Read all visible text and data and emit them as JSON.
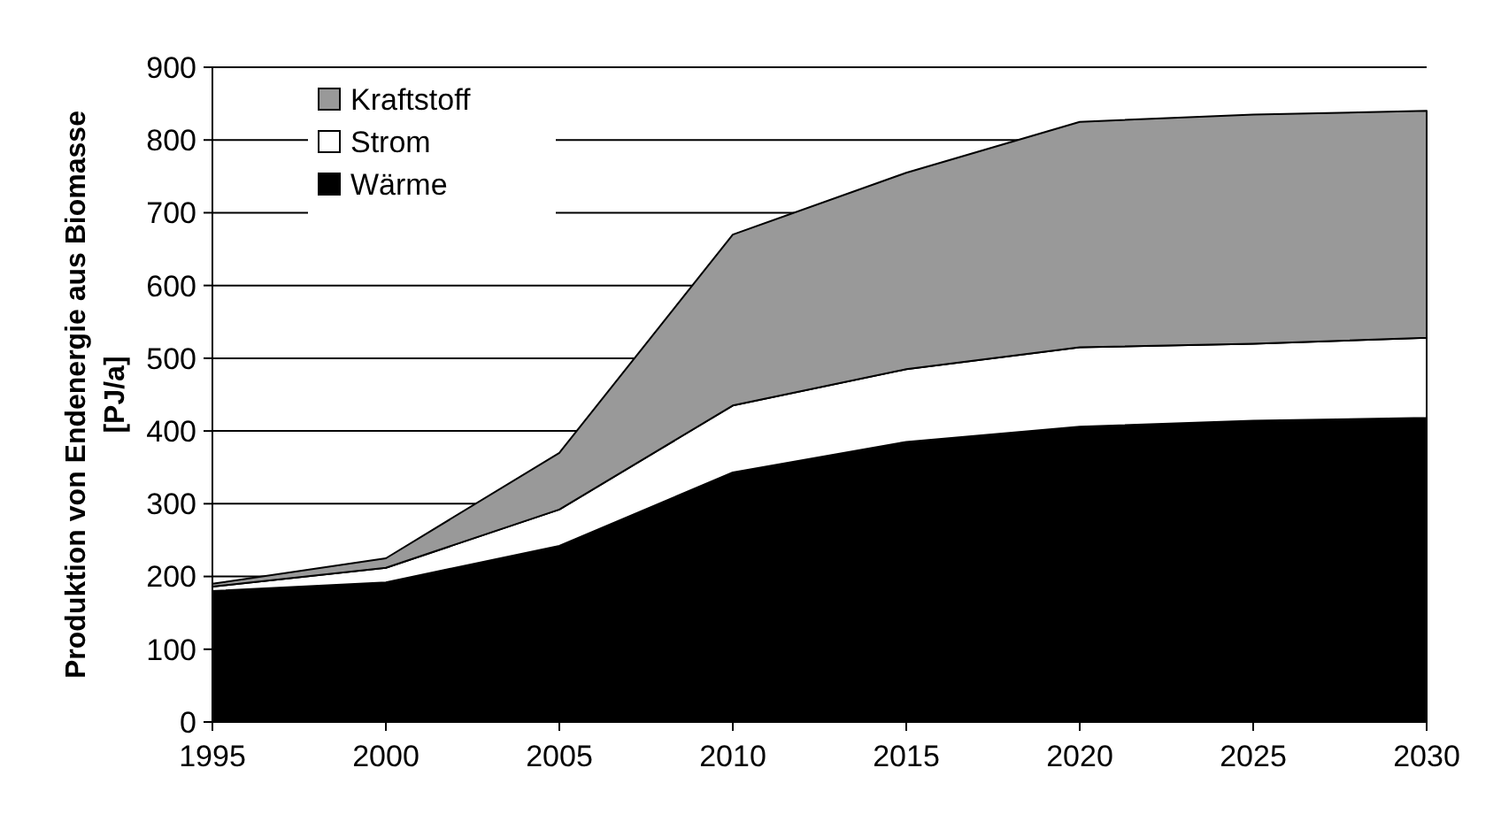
{
  "chart_data": {
    "type": "area",
    "stacked": true,
    "ylabel": "Produktion von Endenergie aus Biomasse\n[PJ/a]",
    "x": [
      1995,
      2000,
      2005,
      2010,
      2015,
      2020,
      2025,
      2030
    ],
    "xlim": [
      1995,
      2030
    ],
    "xticks": [
      1995,
      2000,
      2005,
      2010,
      2015,
      2020,
      2025,
      2030
    ],
    "ylim": [
      0,
      900
    ],
    "yticks": [
      0,
      100,
      200,
      300,
      400,
      500,
      600,
      700,
      800,
      900
    ],
    "grid": "y",
    "legend": "top left",
    "series": [
      {
        "name": "Wärme",
        "color": "#000000",
        "values": [
          180,
          192,
          242,
          343,
          385,
          406,
          414,
          418
        ]
      },
      {
        "name": "Strom",
        "color": "#ffffff",
        "values": [
          6,
          20,
          50,
          92,
          100,
          109,
          106,
          110
        ]
      },
      {
        "name": "Kraftstoff",
        "color": "#999999",
        "values": [
          4,
          13,
          78,
          235,
          270,
          310,
          315,
          312
        ]
      }
    ]
  }
}
